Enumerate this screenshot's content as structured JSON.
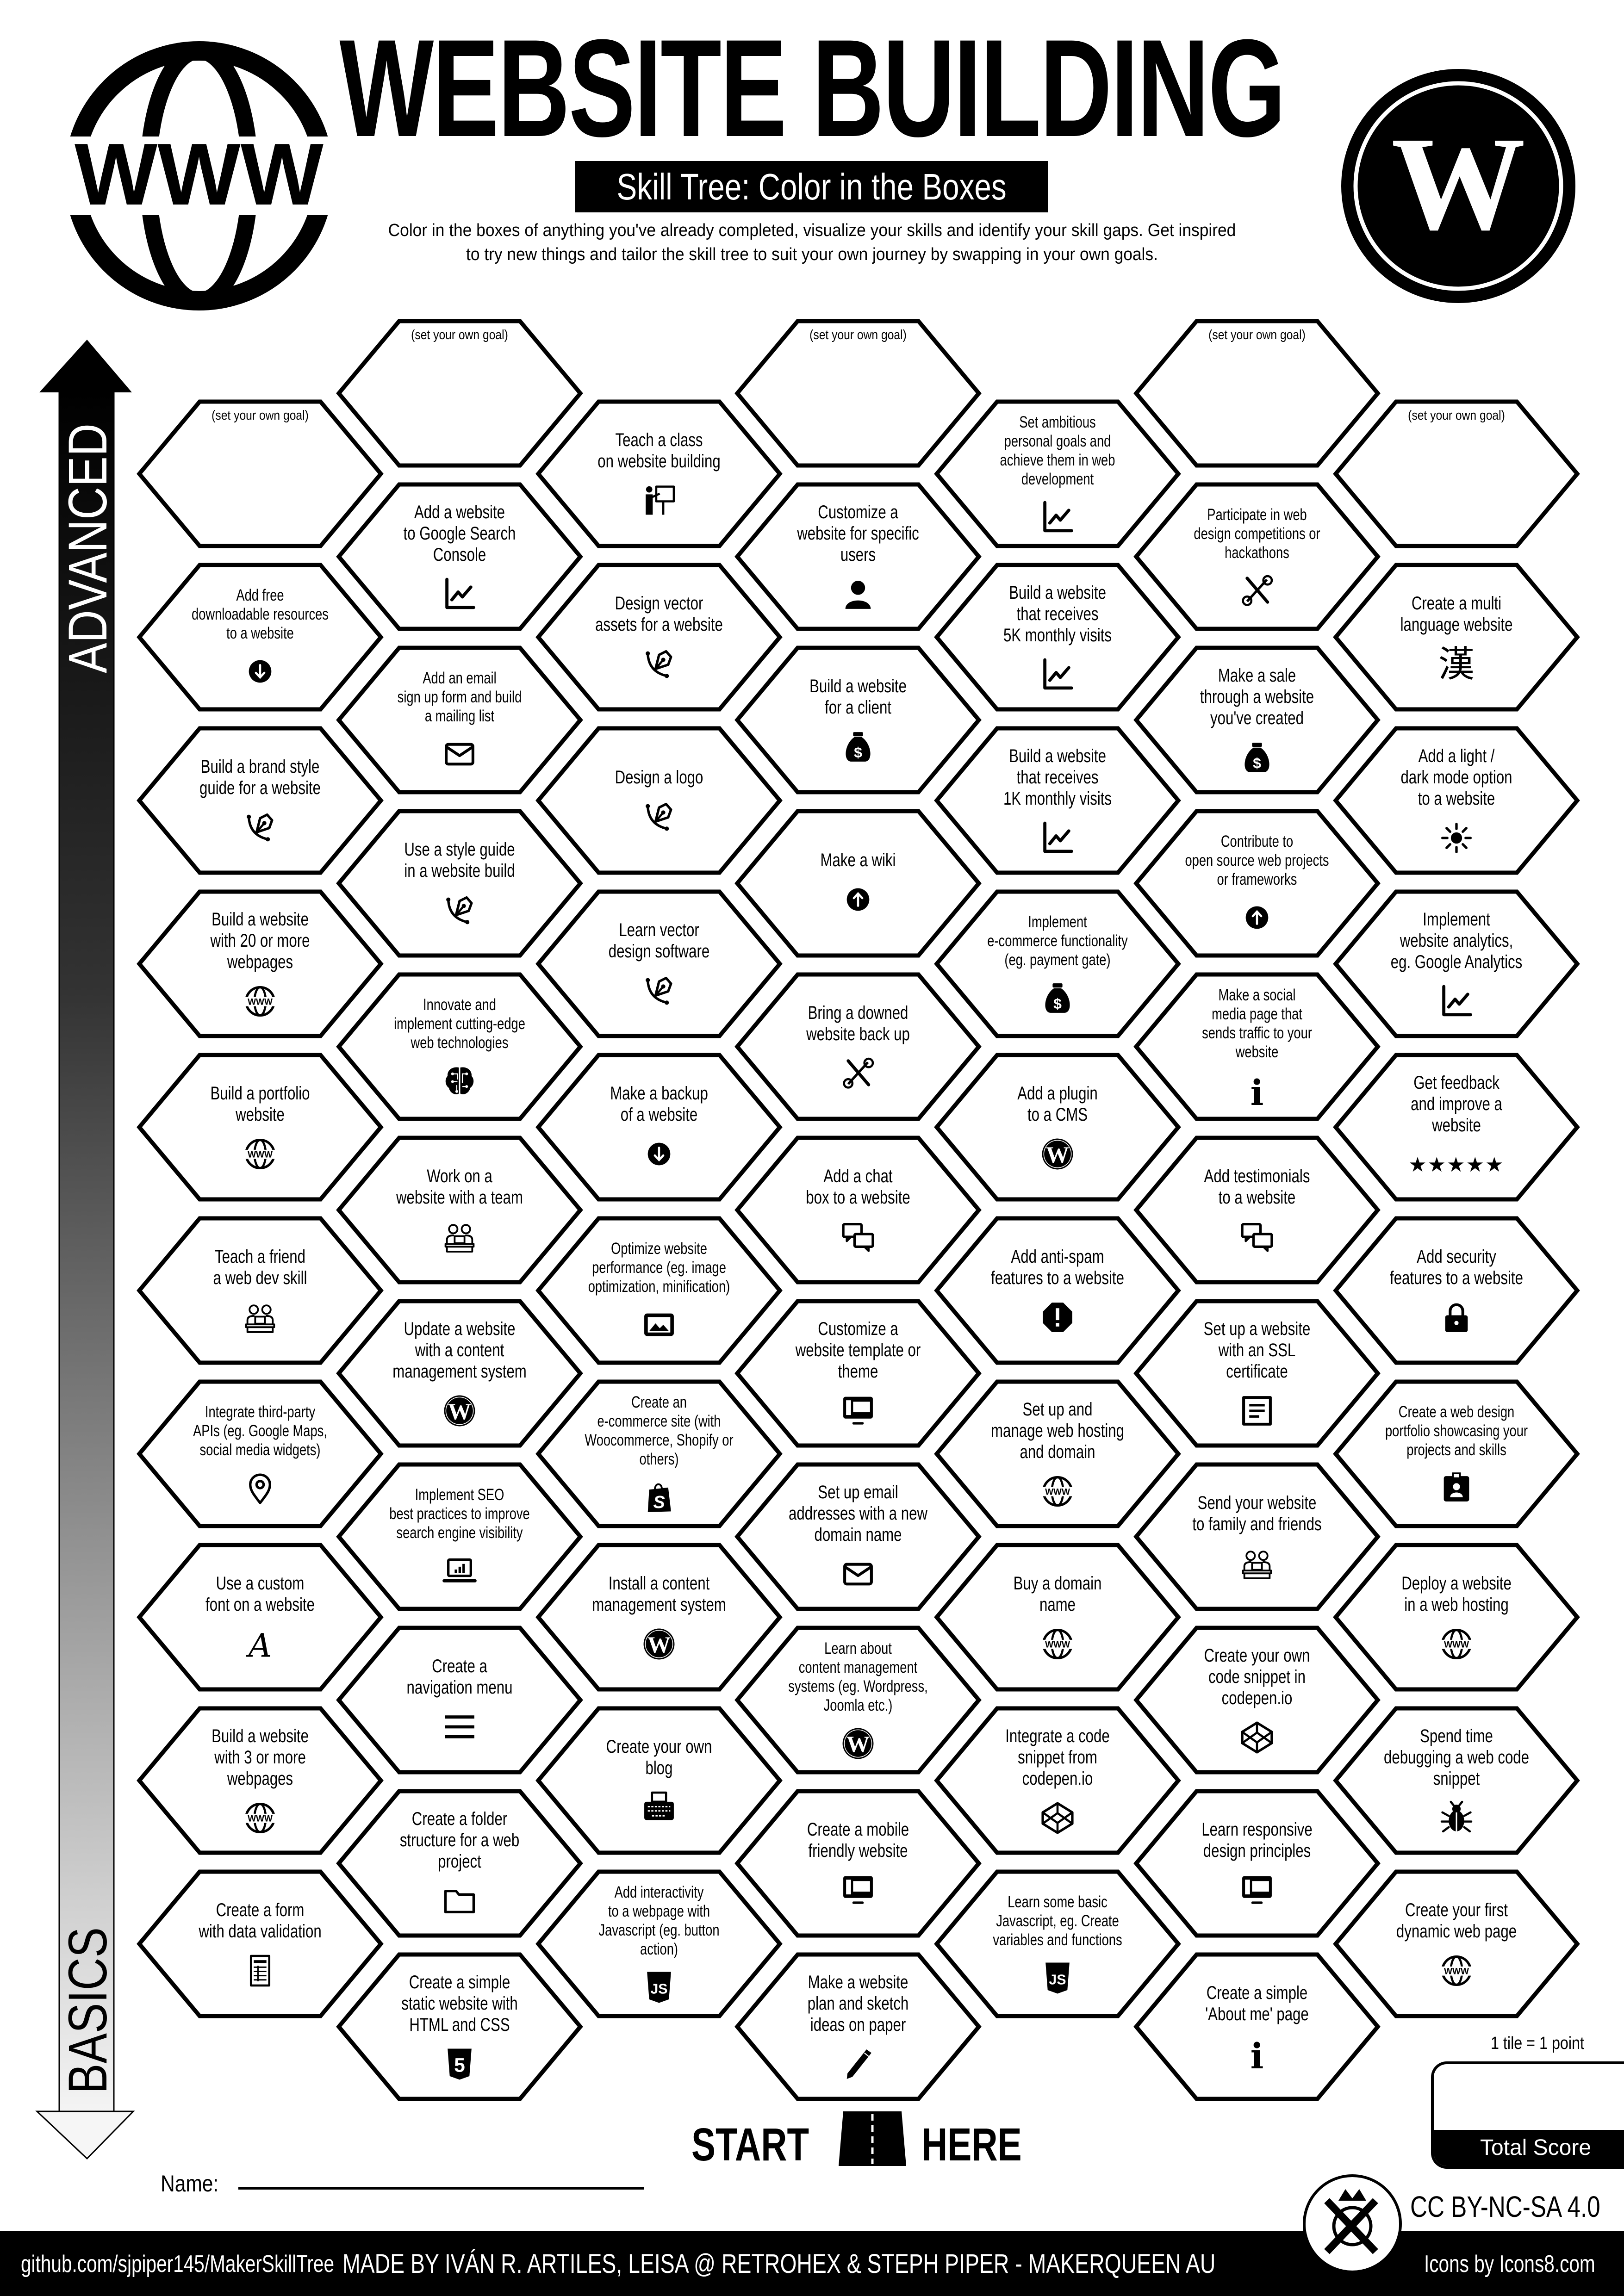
{
  "header": {
    "title": "WEBSITE BUILDING",
    "subtitle": "Skill Tree: Color in the Boxes",
    "description_line1": "Color in the boxes of anything you've already completed, visualize your skills and identify your skill gaps.  Get inspired",
    "description_line2": "to try new things and tailor the skill tree to suit your own journey by swapping in your own goals.",
    "left_logo_text": "WWW",
    "right_logo_text": "W"
  },
  "axis": {
    "top_label": "ADVANCED",
    "bottom_label": "BASICS"
  },
  "start": {
    "left": "START",
    "right": "HERE"
  },
  "name_label": "Name:",
  "score": {
    "note": "1 tile = 1 point",
    "label": "Total Score"
  },
  "license": "CC BY-NC-SA 4.0",
  "footer": {
    "github": "github.com/sjpiper145/MakerSkillTree",
    "credits": "MADE BY IVÁN R. ARTILES, LEISA @ RETROHEX  & STEPH PIPER  -  MAKERQUEEN AU",
    "icons_credit": "Icons by Icons8.com"
  },
  "grid": {
    "columns": [
      [
        {
          "text": "(set your own goal)",
          "goal": true
        },
        {
          "text": "Add free\ndownloadable resources\nto a website",
          "icon": "arrow-down-circle"
        },
        {
          "text": "Build a brand style\nguide for a website",
          "icon": "pen-tool"
        },
        {
          "text": "Build a website\nwith 20 or more\nwebpages",
          "icon": "www"
        },
        {
          "text": "Build a portfolio\nwebsite",
          "icon": "www"
        },
        {
          "text": "Teach a friend\na web dev skill",
          "icon": "team"
        },
        {
          "text": "Integrate third-party\nAPIs (eg. Google Maps,\nsocial media widgets)",
          "icon": "location-pin"
        },
        {
          "text": "Use a custom\nfont on a website",
          "icon": "font"
        },
        {
          "text": "Build a website\nwith 3 or more\nwebpages",
          "icon": "www"
        },
        {
          "text": "Create a form\nwith data validation",
          "icon": "form"
        }
      ],
      [
        {
          "text": "(set your own goal)",
          "goal": true
        },
        {
          "text": "Add a website\nto Google Search\nConsole",
          "icon": "chart"
        },
        {
          "text": "Add an email\nsign up form and build\na mailing list",
          "icon": "envelope"
        },
        {
          "text": "Use a style guide\nin a website build",
          "icon": "pen-tool"
        },
        {
          "text": "Innovate and\nimplement cutting-edge\nweb technologies",
          "icon": "brain"
        },
        {
          "text": "Work on a\nwebsite with a team",
          "icon": "team"
        },
        {
          "text": "Update a website\nwith a content\nmanagement system",
          "icon": "wordpress"
        },
        {
          "text": "Implement SEO\nbest practices to improve\nsearch engine visibility",
          "icon": "laptop-chart"
        },
        {
          "text": "Create a\nnavigation menu",
          "icon": "menu"
        },
        {
          "text": "Create a folder\nstructure for a web\nproject",
          "icon": "folder"
        },
        {
          "text": "Create a simple\nstatic website with\nHTML and CSS",
          "icon": "html5"
        }
      ],
      [
        {
          "text": "Teach a class\non website building",
          "icon": "teacher"
        },
        {
          "text": "Design vector\nassets for a website",
          "icon": "pen-tool"
        },
        {
          "text": "Design a logo",
          "icon": "pen-tool"
        },
        {
          "text": "Learn vector\ndesign software",
          "icon": "pen-tool"
        },
        {
          "text": "Make a backup\nof a website",
          "icon": "arrow-down-circle"
        },
        {
          "text": "Optimize website\nperformance (eg. image\noptimization, minification)",
          "icon": "image"
        },
        {
          "text": "Create an\ne-commerce site (with\nWoocommerce, Shopify or\nothers)",
          "icon": "shopify"
        },
        {
          "text": "Install a content\nmanagement system",
          "icon": "wordpress"
        },
        {
          "text": "Create your own\nblog",
          "icon": "typewriter"
        },
        {
          "text": "Add interactivity\nto a webpage with\nJavascript (eg. button\naction)",
          "icon": "javascript"
        }
      ],
      [
        {
          "text": "(set your own goal)",
          "goal": true
        },
        {
          "text": "Customize a\nwebsite for specific\nusers",
          "icon": "user"
        },
        {
          "text": "Build a website\nfor a client",
          "icon": "money-bag"
        },
        {
          "text": "Make a wiki",
          "icon": "arrow-up-circle"
        },
        {
          "text": "Bring a downed\nwebsite back up",
          "icon": "tools"
        },
        {
          "text": "Add a chat\nbox to a website",
          "icon": "chat"
        },
        {
          "text": "Customize a\nwebsite template or\ntheme",
          "icon": "monitor"
        },
        {
          "text": "Set up email\naddresses with a new\ndomain name",
          "icon": "envelope"
        },
        {
          "text": "Learn about\ncontent management\nsystems (eg. Wordpress,\nJoomla etc.)",
          "icon": "wordpress"
        },
        {
          "text": "Create a mobile\nfriendly website",
          "icon": "monitor"
        },
        {
          "text": "Make a website\nplan and sketch\nideas on paper",
          "icon": "pencil"
        }
      ],
      [
        {
          "text": "Set ambitious\npersonal goals and\nachieve them in web\ndevelopment",
          "icon": "chart"
        },
        {
          "text": "Build a website\nthat receives\n5K monthly visits",
          "icon": "chart"
        },
        {
          "text": "Build a website\nthat receives\n1K monthly visits",
          "icon": "chart"
        },
        {
          "text": "Implement\ne-commerce functionality\n(eg. payment gate)",
          "icon": "money-bag"
        },
        {
          "text": "Add a plugin\nto a CMS",
          "icon": "wordpress"
        },
        {
          "text": "Add anti-spam\nfeatures to a website",
          "icon": "warning"
        },
        {
          "text": "Set up and\nmanage web hosting\nand domain",
          "icon": "www"
        },
        {
          "text": "Buy a domain\nname",
          "icon": "www"
        },
        {
          "text": "Integrate a code\nsnippet from\ncodepen.io",
          "icon": "codepen"
        },
        {
          "text": "Learn some basic\nJavascript, eg. Create\nvariables and functions",
          "icon": "javascript"
        }
      ],
      [
        {
          "text": "(set your own goal)",
          "goal": true
        },
        {
          "text": "Participate in web\ndesign competitions or\nhackathons",
          "icon": "tools"
        },
        {
          "text": "Make a sale\nthrough a website\nyou've created",
          "icon": "money-bag"
        },
        {
          "text": "Contribute to\nopen source web projects\nor frameworks",
          "icon": "arrow-up-circle"
        },
        {
          "text": "Make a social\nmedia page that\nsends traffic to your\nwebsite",
          "icon": "info"
        },
        {
          "text": "Add testimonials\nto a website",
          "icon": "chat"
        },
        {
          "text": "Set up a website\nwith an SSL\ncertificate",
          "icon": "document"
        },
        {
          "text": "Send your website\nto family and friends",
          "icon": "team"
        },
        {
          "text": "Create your own\ncode snippet in\ncodepen.io",
          "icon": "codepen"
        },
        {
          "text": "Learn responsive\ndesign principles",
          "icon": "monitor"
        },
        {
          "text": "Create a simple\n'About me' page",
          "icon": "info"
        }
      ],
      [
        {
          "text": "(set your own goal)",
          "goal": true
        },
        {
          "text": "Create a multi\nlanguage website",
          "icon": "kanji",
          "glyph": "漢"
        },
        {
          "text": "Add a light /\ndark mode option\nto a website",
          "icon": "sun"
        },
        {
          "text": "Implement\nwebsite analytics,\neg. Google Analytics",
          "icon": "chart"
        },
        {
          "text": "Get feedback\nand improve a\nwebsite",
          "icon": "five-stars",
          "glyph": "★★★★★"
        },
        {
          "text": "Add security\nfeatures to a website",
          "icon": "lock"
        },
        {
          "text": "Create a web design\nportfolio showcasing your\nprojects and skills",
          "icon": "id-badge"
        },
        {
          "text": "Deploy a website\nin a web hosting",
          "icon": "www"
        },
        {
          "text": "Spend time\ndebugging a web code\nsnippet",
          "icon": "bug"
        },
        {
          "text": "Create your first\ndynamic web page",
          "icon": "www"
        }
      ]
    ]
  }
}
